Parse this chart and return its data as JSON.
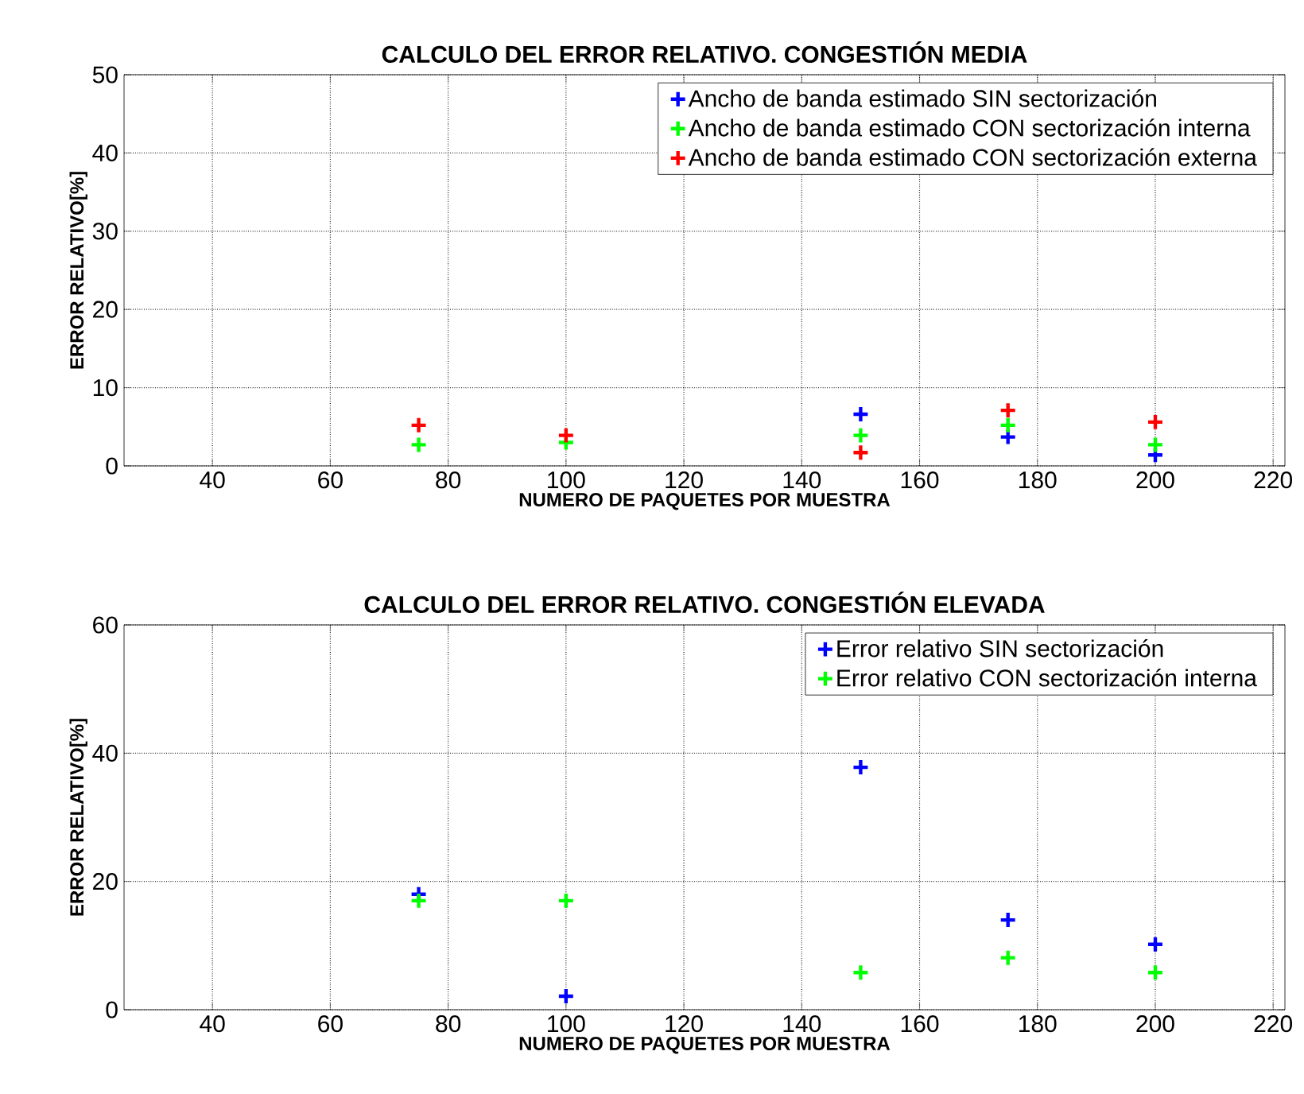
{
  "chart_data": [
    {
      "type": "scatter",
      "title": "CALCULO DEL ERROR RELATIVO. CONGESTIÓN MEDIA",
      "xlabel": "NUMERO DE PAQUETES POR MUESTRA",
      "ylabel": "ERROR RELATIVO[%]",
      "x": [
        75,
        100,
        150,
        175,
        200
      ],
      "series": [
        {
          "name": "Ancho de banda estimado SIN sectorización",
          "color": "#0000ff",
          "values": [
            null,
            null,
            6.6,
            3.7,
            1.4
          ]
        },
        {
          "name": "Ancho de banda estimado CON sectorización interna",
          "color": "#00ff00",
          "values": [
            2.7,
            3.0,
            3.9,
            5.2,
            2.7
          ]
        },
        {
          "name": "Ancho de banda estimado CON sectorización externa",
          "color": "#ff0000",
          "values": [
            5.2,
            3.9,
            1.7,
            7.1,
            5.6
          ]
        }
      ],
      "xlim": [
        25,
        222
      ],
      "ylim": [
        0,
        50
      ],
      "xticks": [
        40,
        60,
        80,
        100,
        120,
        140,
        160,
        180,
        200,
        220
      ],
      "yticks": [
        0,
        10,
        20,
        30,
        40,
        50
      ],
      "grid": true,
      "legend": "top right",
      "marker": "cross"
    },
    {
      "type": "scatter",
      "title": "CALCULO DEL ERROR RELATIVO. CONGESTIÓN ELEVADA",
      "xlabel": "NUMERO DE PAQUETES POR MUESTRA",
      "ylabel": "ERROR RELATIVO[%]",
      "x": [
        75,
        100,
        150,
        175,
        200
      ],
      "series": [
        {
          "name": "Error relativo SIN sectorización",
          "color": "#0000ff",
          "values": [
            18.0,
            2.1,
            37.8,
            14.0,
            10.2
          ]
        },
        {
          "name": "Error relativo CON sectorización interna",
          "color": "#00ff00",
          "values": [
            17.0,
            17.0,
            5.8,
            8.1,
            5.8
          ]
        }
      ],
      "xlim": [
        25,
        222
      ],
      "ylim": [
        0,
        60
      ],
      "xticks": [
        40,
        60,
        80,
        100,
        120,
        140,
        160,
        180,
        200,
        220
      ],
      "yticks": [
        0,
        20,
        40,
        60
      ],
      "grid": true,
      "legend": "top right",
      "marker": "cross"
    }
  ]
}
